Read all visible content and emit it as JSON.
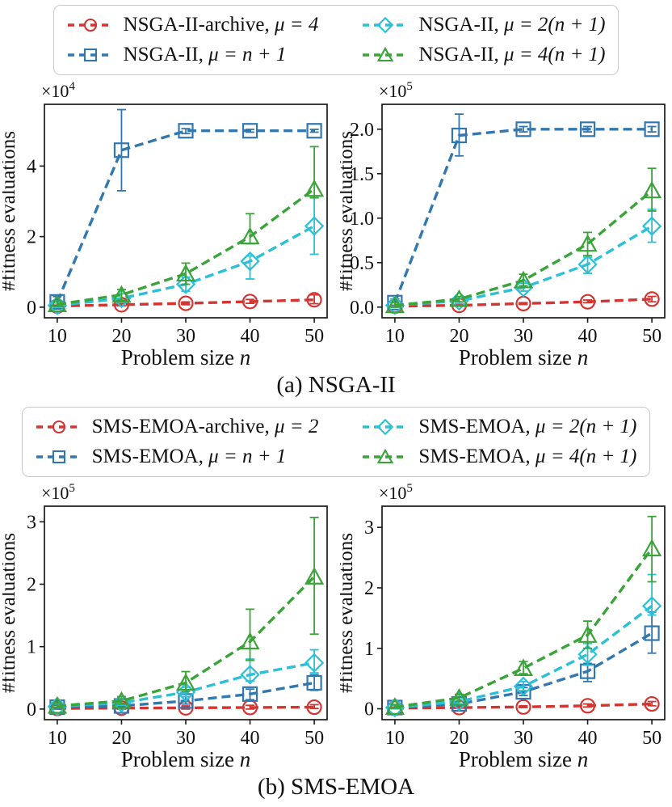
{
  "palette": {
    "red": "#d23532",
    "blue": "#3377af",
    "cyan": "#2cc0d6",
    "green": "#3aa33a",
    "axis": "#1a1a1a",
    "legend_border": "#c9c9c9"
  },
  "captions": {
    "a": "(a) NSGA-II",
    "b": "(b) SMS-EMOA"
  },
  "legends": {
    "a": {
      "items": [
        {
          "name": "NSGA-II-archive, ",
          "math": "μ = 4",
          "marker": "circle",
          "color": "#d23532"
        },
        {
          "name": "NSGA-II, ",
          "math": "μ = n + 1",
          "marker": "square",
          "color": "#3377af"
        },
        {
          "name": "NSGA-II, ",
          "math": "μ = 2(n + 1)",
          "marker": "diamond",
          "color": "#2cc0d6"
        },
        {
          "name": "NSGA-II, ",
          "math": "μ = 4(n + 1)",
          "marker": "triangle",
          "color": "#3aa33a"
        }
      ]
    },
    "b": {
      "items": [
        {
          "name": "SMS-EMOA-archive, ",
          "math": "μ = 2",
          "marker": "circle",
          "color": "#d23532"
        },
        {
          "name": "SMS-EMOA, ",
          "math": "μ = n + 1",
          "marker": "square",
          "color": "#3377af"
        },
        {
          "name": "SMS-EMOA, ",
          "math": "μ = 2(n + 1)",
          "marker": "diamond",
          "color": "#2cc0d6"
        },
        {
          "name": "SMS-EMOA, ",
          "math": "μ = 4(n + 1)",
          "marker": "triangle",
          "color": "#3aa33a"
        }
      ]
    }
  },
  "chart_data": [
    {
      "id": "a-left",
      "type": "line",
      "xlabel": {
        "text": "Problem size",
        "var": "n"
      },
      "ylabel": "#fitness evaluations",
      "offset": {
        "base": "×10",
        "exp": "4"
      },
      "x": [
        10,
        20,
        30,
        40,
        50
      ],
      "xticks": [
        "10",
        "20",
        "30",
        "40",
        "50"
      ],
      "xlim": [
        8,
        52
      ],
      "ylim": [
        -0.3,
        5.75
      ],
      "yticks": {
        "values": [
          0,
          2,
          4
        ],
        "labels": [
          "0",
          "2",
          "4"
        ]
      },
      "grid": false,
      "series": [
        {
          "name": "NSGA-II-archive, μ = 4",
          "marker": "circle",
          "color": "#d23532",
          "values": [
            0.03,
            0.07,
            0.11,
            0.16,
            0.21
          ],
          "err_lo": [
            0.01,
            0.04,
            0.07,
            0.11,
            0.1
          ],
          "err_hi": [
            0.06,
            0.1,
            0.15,
            0.22,
            0.35
          ]
        },
        {
          "name": "NSGA-II, μ = n + 1",
          "marker": "square",
          "color": "#3377af",
          "values": [
            0.15,
            4.45,
            5.0,
            5.0,
            5.0
          ],
          "err_lo": [
            0.05,
            3.3,
            4.92,
            4.96,
            4.96
          ],
          "err_hi": [
            0.3,
            5.6,
            5.06,
            5.04,
            5.04
          ]
        },
        {
          "name": "NSGA-II, μ = 2(n + 1)",
          "marker": "diamond",
          "color": "#2cc0d6",
          "values": [
            0.05,
            0.25,
            0.65,
            1.3,
            2.3
          ],
          "err_lo": [
            0.0,
            0.15,
            0.45,
            0.8,
            1.5
          ],
          "err_hi": [
            0.12,
            0.38,
            0.85,
            1.45,
            3.1
          ]
        },
        {
          "name": "NSGA-II, μ = 4(n + 1)",
          "marker": "triangle",
          "color": "#3aa33a",
          "values": [
            0.08,
            0.35,
            0.95,
            2.0,
            3.35
          ],
          "err_lo": [
            0.02,
            0.2,
            0.65,
            1.8,
            3.1
          ],
          "err_hi": [
            0.18,
            0.5,
            1.25,
            2.65,
            4.55
          ]
        }
      ]
    },
    {
      "id": "a-right",
      "type": "line",
      "xlabel": {
        "text": "Problem size",
        "var": "n"
      },
      "ylabel": "#fitness evaluations",
      "offset": {
        "base": "×10",
        "exp": "5"
      },
      "x": [
        10,
        20,
        30,
        40,
        50
      ],
      "xticks": [
        "10",
        "20",
        "30",
        "40",
        "50"
      ],
      "xlim": [
        8,
        52
      ],
      "ylim": [
        -0.12,
        2.28
      ],
      "yticks": {
        "values": [
          0.0,
          0.5,
          1.0,
          1.5,
          2.0
        ],
        "labels": [
          "0.0",
          "0.5",
          "1.0",
          "1.5",
          "2.0"
        ]
      },
      "grid": false,
      "series": [
        {
          "name": "NSGA-II-archive, μ = 4",
          "marker": "circle",
          "color": "#d23532",
          "values": [
            0.01,
            0.02,
            0.04,
            0.06,
            0.09
          ],
          "err_lo": [
            0.0,
            0.01,
            0.03,
            0.05,
            0.06
          ],
          "err_hi": [
            0.02,
            0.03,
            0.05,
            0.08,
            0.12
          ]
        },
        {
          "name": "NSGA-II, μ = n + 1",
          "marker": "square",
          "color": "#3377af",
          "values": [
            0.05,
            1.93,
            2.0,
            2.0,
            2.0
          ],
          "err_lo": [
            0.02,
            1.7,
            1.97,
            1.97,
            1.97
          ],
          "err_hi": [
            0.09,
            2.17,
            2.03,
            2.03,
            2.03
          ]
        },
        {
          "name": "NSGA-II, μ = 2(n + 1)",
          "marker": "diamond",
          "color": "#2cc0d6",
          "values": [
            0.02,
            0.07,
            0.22,
            0.48,
            0.91
          ],
          "err_lo": [
            0.0,
            0.04,
            0.18,
            0.38,
            0.73
          ],
          "err_hi": [
            0.05,
            0.1,
            0.27,
            0.56,
            1.1
          ]
        },
        {
          "name": "NSGA-II, μ = 4(n + 1)",
          "marker": "triangle",
          "color": "#3aa33a",
          "values": [
            0.02,
            0.09,
            0.3,
            0.71,
            1.31
          ],
          "err_lo": [
            0.0,
            0.06,
            0.24,
            0.58,
            1.08
          ],
          "err_hi": [
            0.05,
            0.12,
            0.37,
            0.84,
            1.56
          ]
        }
      ]
    },
    {
      "id": "b-left",
      "type": "line",
      "xlabel": {
        "text": "Problem size",
        "var": "n"
      },
      "ylabel": "#fitness evaluations",
      "offset": {
        "base": "×10",
        "exp": "5"
      },
      "x": [
        10,
        20,
        30,
        40,
        50
      ],
      "xticks": [
        "10",
        "20",
        "30",
        "40",
        "50"
      ],
      "xlim": [
        8,
        52
      ],
      "ylim": [
        -0.17,
        3.25
      ],
      "yticks": {
        "values": [
          0,
          1,
          2,
          3
        ],
        "labels": [
          "0",
          "1",
          "2",
          "3"
        ]
      },
      "grid": false,
      "series": [
        {
          "name": "SMS-EMOA-archive, μ = 2",
          "marker": "circle",
          "color": "#d23532",
          "values": [
            0.01,
            0.015,
            0.02,
            0.025,
            0.03
          ],
          "err_lo": [
            0.0,
            0.0,
            0.0,
            0.0,
            0.01
          ],
          "err_hi": [
            0.03,
            0.04,
            0.05,
            0.06,
            0.07
          ]
        },
        {
          "name": "SMS-EMOA, μ = n + 1",
          "marker": "square",
          "color": "#3377af",
          "values": [
            0.03,
            0.05,
            0.13,
            0.24,
            0.42
          ],
          "err_lo": [
            0.01,
            0.02,
            0.08,
            0.15,
            0.3
          ],
          "err_hi": [
            0.06,
            0.09,
            0.2,
            0.32,
            0.55
          ]
        },
        {
          "name": "SMS-EMOA, μ = 2(n + 1)",
          "marker": "diamond",
          "color": "#2cc0d6",
          "values": [
            0.04,
            0.1,
            0.27,
            0.55,
            0.74
          ],
          "err_lo": [
            0.02,
            0.06,
            0.2,
            0.45,
            0.58
          ],
          "err_hi": [
            0.08,
            0.15,
            0.35,
            0.8,
            0.95
          ]
        },
        {
          "name": "SMS-EMOA, μ = 4(n + 1)",
          "marker": "triangle",
          "color": "#3aa33a",
          "values": [
            0.05,
            0.13,
            0.42,
            1.08,
            2.12
          ],
          "err_lo": [
            0.02,
            0.08,
            0.28,
            0.78,
            1.2
          ],
          "err_hi": [
            0.1,
            0.2,
            0.6,
            1.6,
            3.07
          ]
        }
      ]
    },
    {
      "id": "b-right",
      "type": "line",
      "xlabel": {
        "text": "Problem size",
        "var": "n"
      },
      "ylabel": "#fitness evaluations",
      "offset": {
        "base": "×10",
        "exp": "5"
      },
      "x": [
        10,
        20,
        30,
        40,
        50
      ],
      "xticks": [
        "10",
        "20",
        "30",
        "40",
        "50"
      ],
      "xlim": [
        8,
        52
      ],
      "ylim": [
        -0.18,
        3.35
      ],
      "yticks": {
        "values": [
          0,
          1,
          2,
          3
        ],
        "labels": [
          "0",
          "1",
          "2",
          "3"
        ]
      },
      "grid": false,
      "series": [
        {
          "name": "SMS-EMOA-archive, μ = 2",
          "marker": "circle",
          "color": "#d23532",
          "values": [
            0.01,
            0.02,
            0.03,
            0.05,
            0.08
          ],
          "err_lo": [
            0.0,
            0.01,
            0.02,
            0.03,
            0.05
          ],
          "err_hi": [
            0.02,
            0.04,
            0.05,
            0.08,
            0.12
          ]
        },
        {
          "name": "SMS-EMOA, μ = n + 1",
          "marker": "square",
          "color": "#3377af",
          "values": [
            0.02,
            0.08,
            0.28,
            0.62,
            1.25
          ],
          "err_lo": [
            0.0,
            0.05,
            0.22,
            0.45,
            0.92
          ],
          "err_hi": [
            0.05,
            0.12,
            0.35,
            0.75,
            1.6
          ]
        },
        {
          "name": "SMS-EMOA, μ = 2(n + 1)",
          "marker": "diamond",
          "color": "#2cc0d6",
          "values": [
            0.02,
            0.12,
            0.37,
            0.9,
            1.7
          ],
          "err_lo": [
            0.0,
            0.08,
            0.3,
            0.72,
            1.55
          ],
          "err_hi": [
            0.05,
            0.16,
            0.45,
            1.08,
            2.22
          ]
        },
        {
          "name": "SMS-EMOA, μ = 4(n + 1)",
          "marker": "triangle",
          "color": "#3aa33a",
          "values": [
            0.03,
            0.18,
            0.67,
            1.22,
            2.65
          ],
          "err_lo": [
            0.01,
            0.12,
            0.58,
            1.0,
            2.1
          ],
          "err_hi": [
            0.07,
            0.24,
            0.78,
            1.45,
            3.18
          ]
        }
      ]
    }
  ]
}
